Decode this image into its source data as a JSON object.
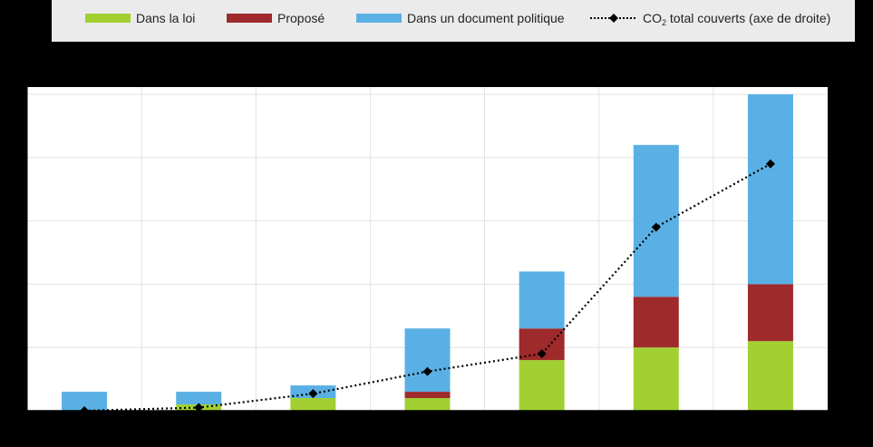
{
  "legend": {
    "in_law": "Dans la loi",
    "proposed": "Proposé",
    "policy_document": "Dans un document politique",
    "co2_prefix": "CO",
    "co2_subscript": "2",
    "co2_suffix": " total couverts (axe de droite)"
  },
  "colors": {
    "in_law": "#a2d033",
    "proposed": "#9e2a2b",
    "policy_document": "#5ab0e4",
    "line": "#000000",
    "plot_background": "#ffffff",
    "grid": "#e2e2e2"
  },
  "chart_data": {
    "type": "bar",
    "stacked": true,
    "categories": [
      "",
      "",
      "",
      "",
      "",
      "",
      ""
    ],
    "series": [
      {
        "name": "Dans la loi",
        "values": [
          0,
          0.1,
          0.2,
          0.2,
          0.8,
          1.0,
          1.1
        ]
      },
      {
        "name": "Proposé",
        "values": [
          0,
          0,
          0,
          0.1,
          0.5,
          0.8,
          0.9
        ]
      },
      {
        "name": "Dans un document politique",
        "values": [
          0.3,
          0.2,
          0.2,
          1.0,
          0.9,
          2.4,
          3.0
        ]
      }
    ],
    "line_series": {
      "name": "CO2 total couverts (axe de droite)",
      "axis": "right",
      "values": [
        0,
        0.05,
        0.27,
        0.62,
        0.9,
        2.9,
        3.9
      ]
    },
    "ylim": [
      0,
      5
    ],
    "y2lim": [
      0,
      5
    ],
    "grid": true,
    "legend_position": "top",
    "title": "",
    "xlabel": "",
    "ylabel": ""
  }
}
